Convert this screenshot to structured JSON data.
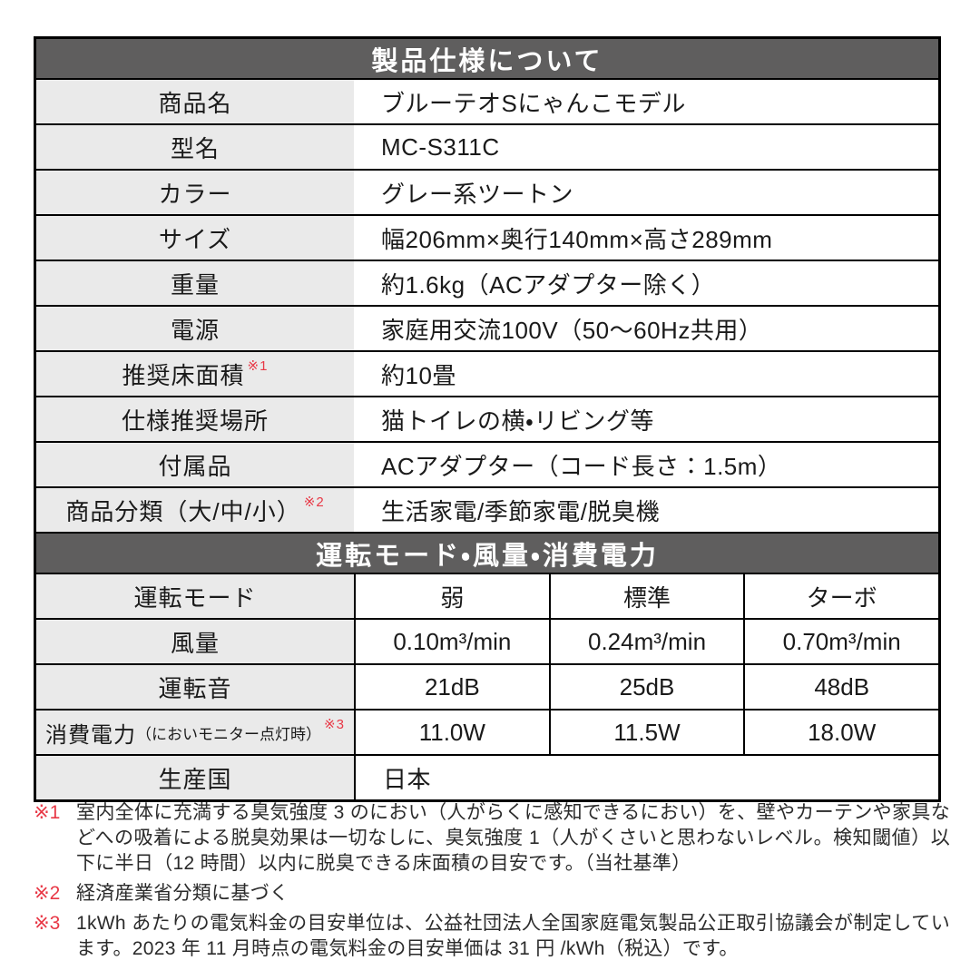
{
  "colors": {
    "header_bg": "#5f5e5e",
    "label_bg": "#eaeaea",
    "note_red": "#e83846",
    "border": "#000000"
  },
  "spec_table": {
    "title": "製品仕様について",
    "rows": [
      {
        "label": "商品名",
        "value": "ブルーテオSにゃんこモデル"
      },
      {
        "label": "型名",
        "value": "MC-S311C"
      },
      {
        "label": "カラー",
        "value": "グレー系ツートン"
      },
      {
        "label": "サイズ",
        "value": "幅206mm×奥行140mm×高さ289mm"
      },
      {
        "label": "重量",
        "value": "約1.6kg（ACアダプター除く）"
      },
      {
        "label": "電源",
        "value": "家庭用交流100V（50～60Hz共用）"
      },
      {
        "label": "推奨床面積",
        "note": "※1",
        "value": "約10畳"
      },
      {
        "label": "仕様推奨場所",
        "value": "猫トイレの横・リビング等"
      },
      {
        "label": "付属品",
        "value": "ACアダプター（コード長さ：1.5m）"
      },
      {
        "label": "商品分類（大/中/小）",
        "note": "※2",
        "value": "生活家電/季節家電/脱臭機"
      }
    ]
  },
  "mode_table": {
    "title": "運転モード・風量・消費電力",
    "mode_row": {
      "label": "運転モード",
      "values": [
        "弱",
        "標準",
        "ターボ"
      ]
    },
    "airflow_row": {
      "label": "風量",
      "values": [
        "0.10m³/min",
        "0.24m³/min",
        "0.70m³/min"
      ]
    },
    "noise_row": {
      "label": "運転音",
      "values": [
        "21dB",
        "25dB",
        "48dB"
      ]
    },
    "power_row": {
      "label": "消費電力",
      "label_paren": "（においモニター点灯時）",
      "note": "※3",
      "values": [
        "11.0W",
        "11.5W",
        "18.0W"
      ]
    },
    "country_row": {
      "label": "生産国",
      "value": "日本"
    }
  },
  "footnotes": [
    {
      "mark": "※1",
      "text": "室内全体に充満する臭気強度 3 のにおい（人がらくに感知できるにおい）を、壁やカーテンや家具などへの吸着による脱臭効果は一切なしに、臭気強度 1（人がくさいと思わないレベル。検知閾値）以下に半日（12 時間）以内に脱臭できる床面積の目安です。（当社基準）"
    },
    {
      "mark": "※2",
      "text": "経済産業省分類に基づく"
    },
    {
      "mark": "※3",
      "text": "1kWh あたりの電気料金の目安単位は、公益社団法人全国家庭電気製品公正取引協議会が制定しています。2023 年 11 月時点の電気料金の目安単価は 31 円 /kWh（税込）です。"
    }
  ]
}
